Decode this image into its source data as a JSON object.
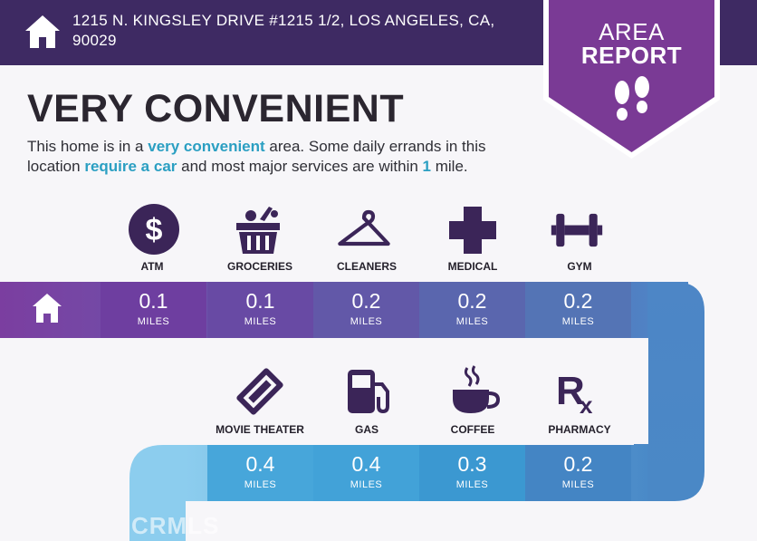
{
  "header": {
    "address_line1": "1215 N. KINGSLEY DRIVE #1215 1/2, LOS ANGELES, CA,",
    "address_line2": "90029"
  },
  "badge": {
    "line1": "AREA",
    "line2": "REPORT"
  },
  "title": "VERY CONVENIENT",
  "description": {
    "p1": "This home is in a ",
    "b1": "very convenient",
    "p2": " area. Some daily errands in this location ",
    "b2": "require a car",
    "p3": " and most major services are within ",
    "b3": "1",
    "p4": " mile."
  },
  "row1": [
    {
      "label": "ATM",
      "value": "0.1",
      "unit": "MILES",
      "icon": "dollar-icon"
    },
    {
      "label": "GROCERIES",
      "value": "0.1",
      "unit": "MILES",
      "icon": "grocery-basket-icon"
    },
    {
      "label": "CLEANERS",
      "value": "0.2",
      "unit": "MILES",
      "icon": "hanger-icon"
    },
    {
      "label": "MEDICAL",
      "value": "0.2",
      "unit": "MILES",
      "icon": "medical-cross-icon"
    },
    {
      "label": "GYM",
      "value": "0.2",
      "unit": "MILES",
      "icon": "dumbbell-icon"
    }
  ],
  "row2": [
    {
      "label": "MOVIE THEATER",
      "value": "0.4",
      "unit": "MILES",
      "icon": "ticket-icon"
    },
    {
      "label": "GAS",
      "value": "0.4",
      "unit": "MILES",
      "icon": "gas-pump-icon"
    },
    {
      "label": "COFFEE",
      "value": "0.3",
      "unit": "MILES",
      "icon": "coffee-cup-icon"
    },
    {
      "label": "PHARMACY",
      "value": "0.2",
      "unit": "MILES",
      "icon": "rx-icon"
    }
  ],
  "watermark": "CRMLS",
  "colors": {
    "header": "#3e2a63",
    "badge": "#7a3a95",
    "row1_cells": [
      "#6e3ea0",
      "#684aa4",
      "#6258a8",
      "#5a66ae",
      "#5474b5"
    ],
    "row2_cells": [
      "#47a6da",
      "#42a2d8",
      "#3b98d1",
      "#4485c4"
    ],
    "accent_text": "#2b9fc2"
  }
}
